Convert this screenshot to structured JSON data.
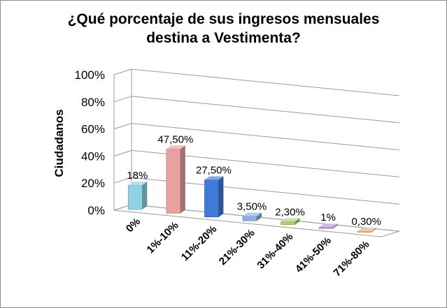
{
  "chart_data": {
    "type": "bar",
    "title_line1": "¿Qué porcentaje de sus ingresos mensuales",
    "title_line2": "destina a Vestimenta?",
    "ylabel": "Ciudadanos",
    "xlabel": "",
    "ylim": [
      0,
      100
    ],
    "yticks": [
      "0%",
      "20%",
      "40%",
      "60%",
      "80%",
      "100%"
    ],
    "categories": [
      "0%",
      "1%-10%",
      "11%-20%",
      "21%-30%",
      "31%-40%",
      "41%-50%",
      "71%-80%"
    ],
    "values": [
      18,
      47.5,
      27.5,
      3.5,
      2.3,
      1,
      0.3
    ],
    "data_labels": [
      "18%",
      "47,50%",
      "27,50%",
      "3,50%",
      "2,30%",
      "1%",
      "0,30%"
    ],
    "grid": true,
    "bar_colors": [
      "#8fd3e3",
      "#e8a0a0",
      "#3e7ad6",
      "#8aaee0",
      "#a8d07a",
      "#b49ad0",
      "#f0b07a"
    ]
  }
}
